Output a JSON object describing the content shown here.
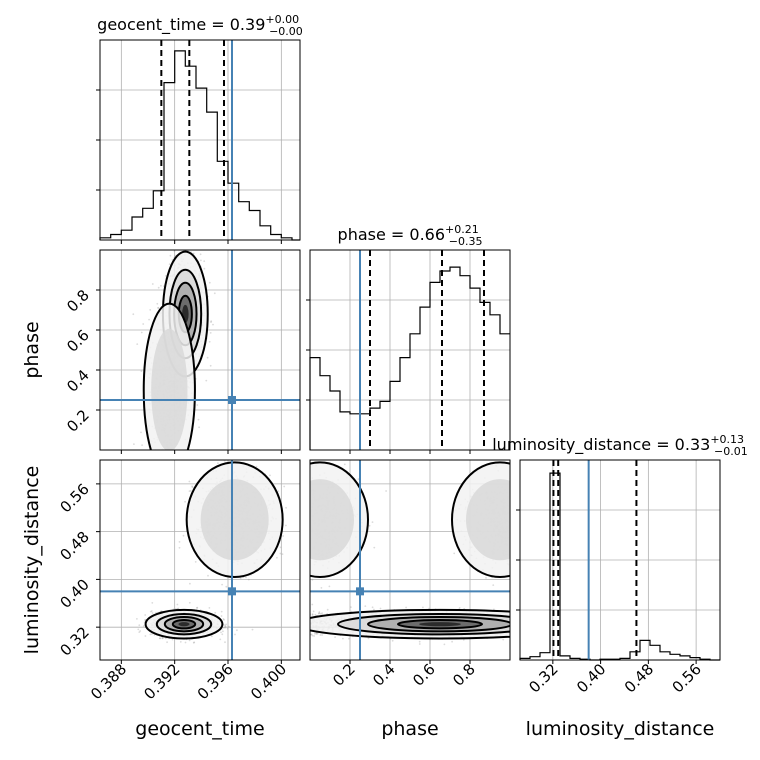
{
  "chart_data": {
    "type": "corner",
    "parameters": [
      {
        "name": "geocent_time",
        "xlabel": "geocent_time",
        "ylabel": "",
        "lim": [
          0.3864,
          0.4014
        ],
        "ticks": [
          0.388,
          0.392,
          0.396,
          0.4
        ],
        "tick_labels": [
          "0.388",
          "0.392",
          "0.396",
          "0.400"
        ],
        "truth": 0.3963
      },
      {
        "name": "phase",
        "xlabel": "phase",
        "ylabel": "phase",
        "lim": [
          0.0,
          1.0
        ],
        "ticks": [
          0.2,
          0.4,
          0.6,
          0.8
        ],
        "tick_labels": [
          "0.2",
          "0.4",
          "0.6",
          "0.8"
        ],
        "truth": 0.25
      },
      {
        "name": "luminosity_distance",
        "xlabel": "luminosity_distance",
        "ylabel": "luminosity_distance",
        "lim": [
          0.265,
          0.6
        ],
        "ticks": [
          0.32,
          0.4,
          0.48,
          0.56
        ],
        "tick_labels": [
          "0.32",
          "0.40",
          "0.48",
          "0.56"
        ],
        "truth": 0.38
      }
    ],
    "titles": [
      {
        "text": "geocent_time = 0.39",
        "sup": "+0.00",
        "sub": "−0.00"
      },
      {
        "text": "phase = 0.66",
        "sup": "+0.21",
        "sub": "−0.35"
      },
      {
        "text": "luminosity_distance = 0.33",
        "sup": "+0.13",
        "sub": "−0.01"
      }
    ],
    "histograms": [
      {
        "param": "geocent_time",
        "bins": [
          0.3864,
          0.3872,
          0.388,
          0.3888,
          0.3896,
          0.3904,
          0.3912,
          0.392,
          0.3928,
          0.3936,
          0.3944,
          0.3952,
          0.396,
          0.3968,
          0.3976,
          0.3984,
          0.3992,
          0.4,
          0.4008,
          0.4014
        ],
        "counts": [
          2,
          5,
          9,
          21,
          29,
          45,
          144,
          173,
          159,
          139,
          117,
          72,
          52,
          35,
          27,
          13,
          5,
          2,
          0
        ],
        "ymax": 183,
        "quantiles": [
          0.391,
          0.3931,
          0.3957
        ]
      },
      {
        "param": "phase",
        "bins": [
          0.0,
          0.05,
          0.1,
          0.15,
          0.2,
          0.25,
          0.3,
          0.35,
          0.4,
          0.45,
          0.5,
          0.55,
          0.6,
          0.65,
          0.7,
          0.75,
          0.8,
          0.85,
          0.9,
          0.95,
          1.0
        ],
        "counts": [
          97,
          78,
          62,
          40,
          38,
          38,
          44,
          51,
          72,
          97,
          122,
          150,
          176,
          188,
          192,
          183,
          170,
          155,
          142,
          122
        ],
        "ymax": 210,
        "quantiles": [
          0.3,
          0.66,
          0.87
        ]
      },
      {
        "param": "luminosity_distance",
        "bins": [
          0.265,
          0.2818,
          0.2985,
          0.3153,
          0.332,
          0.3488,
          0.3655,
          0.3823,
          0.399,
          0.4158,
          0.4325,
          0.4493,
          0.466,
          0.4828,
          0.4995,
          0.5163,
          0.533,
          0.5498,
          0.5665,
          0.5833,
          0.6
        ],
        "counts": [
          2,
          4,
          9,
          229,
          5,
          2,
          1,
          0,
          1,
          1,
          2,
          10,
          24,
          18,
          10,
          7,
          5,
          3,
          1,
          0
        ],
        "ymax": 245,
        "quantiles": [
          0.321,
          0.329,
          0.46
        ]
      }
    ],
    "grid": true,
    "truth_color": "#4682b4"
  }
}
